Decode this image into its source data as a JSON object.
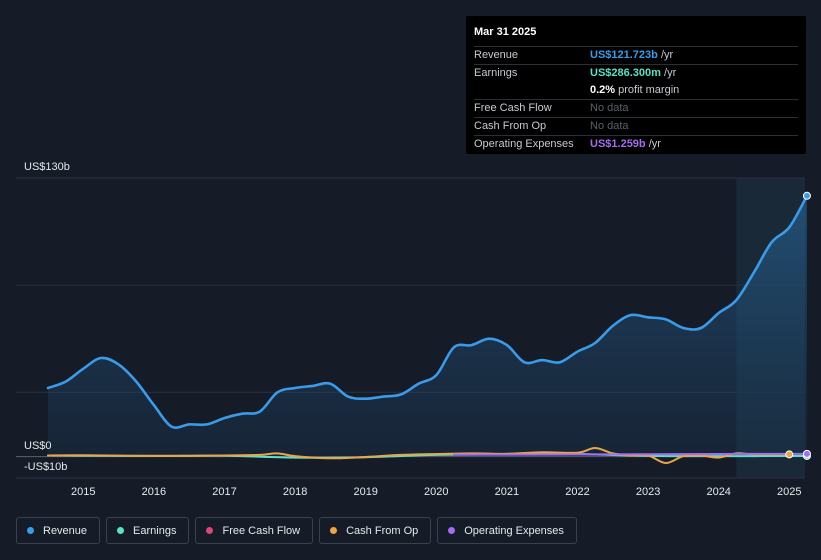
{
  "tooltip": {
    "date": "Mar 31 2025",
    "rows": [
      {
        "label": "Revenue",
        "value": "US$121.723b",
        "unit": " /yr",
        "color": "#3b9be8"
      },
      {
        "label": "Earnings",
        "value": "US$286.300m",
        "unit": " /yr",
        "color": "#5de0c4"
      },
      {
        "label": "",
        "value": "0.2%",
        "unit": " profit margin",
        "color": "#ffffff"
      },
      {
        "label": "Free Cash Flow",
        "value": "No data",
        "unit": "",
        "color": "#5a606b"
      },
      {
        "label": "Cash From Op",
        "value": "No data",
        "unit": "",
        "color": "#5a606b"
      },
      {
        "label": "Operating Expenses",
        "value": "US$1.259b",
        "unit": " /yr",
        "color": "#a46cf0"
      }
    ]
  },
  "legend": [
    {
      "label": "Revenue",
      "color": "#3b9be8"
    },
    {
      "label": "Earnings",
      "color": "#5de0c4"
    },
    {
      "label": "Free Cash Flow",
      "color": "#d9477a"
    },
    {
      "label": "Cash From Op",
      "color": "#e8a54b"
    },
    {
      "label": "Operating Expenses",
      "color": "#a46cf0"
    }
  ],
  "chart_data": {
    "type": "area",
    "y_axis_top_label": "US$130b",
    "y_axis_zero_label": "US$0",
    "y_axis_bottom_label": "-US$10b",
    "ylim": [
      -10,
      130
    ],
    "x_ticks": [
      "2015",
      "2016",
      "2017",
      "2018",
      "2019",
      "2020",
      "2021",
      "2022",
      "2023",
      "2024",
      "2025"
    ],
    "grid": true,
    "series": [
      {
        "name": "Revenue",
        "color": "#3b9be8",
        "x": [
          2014.5,
          2014.75,
          2015.0,
          2015.25,
          2015.5,
          2015.75,
          2016.0,
          2016.25,
          2016.5,
          2016.75,
          2017.0,
          2017.25,
          2017.5,
          2017.75,
          2018.0,
          2018.25,
          2018.5,
          2018.75,
          2019.0,
          2019.25,
          2019.5,
          2019.75,
          2020.0,
          2020.25,
          2020.5,
          2020.75,
          2021.0,
          2021.25,
          2021.5,
          2021.75,
          2022.0,
          2022.25,
          2022.5,
          2022.75,
          2023.0,
          2023.25,
          2023.5,
          2023.75,
          2024.0,
          2024.25,
          2024.5,
          2024.75,
          2025.0,
          2025.25
        ],
        "values": [
          32,
          35,
          41,
          46,
          43,
          35,
          24,
          14,
          15,
          15,
          18,
          20,
          21,
          30,
          32,
          33,
          34,
          28,
          27,
          28,
          29,
          34,
          38,
          51,
          52,
          55,
          52,
          44,
          45,
          44,
          49,
          53,
          61,
          66,
          65,
          64,
          60,
          60,
          67,
          73,
          86,
          100,
          107,
          121.7
        ]
      },
      {
        "name": "Earnings",
        "color": "#5de0c4",
        "x": [
          2014.5,
          2015.0,
          2016.0,
          2017.0,
          2018.0,
          2019.0,
          2020.0,
          2021.0,
          2022.0,
          2023.0,
          2024.0,
          2025.25
        ],
        "values": [
          0.5,
          0.4,
          0.3,
          0.4,
          -0.5,
          -0.3,
          0.8,
          1.0,
          1.2,
          0.3,
          0.2,
          0.29
        ]
      },
      {
        "name": "Cash From Op",
        "color": "#e8a54b",
        "x": [
          2014.5,
          2015.0,
          2016.0,
          2017.0,
          2017.5,
          2017.75,
          2018.0,
          2018.5,
          2019.0,
          2019.5,
          2020.0,
          2020.5,
          2021.0,
          2021.5,
          2022.0,
          2022.25,
          2022.5,
          2022.75,
          2023.0,
          2023.25,
          2023.5,
          2023.75,
          2024.0,
          2024.25,
          2024.5,
          2025.0
        ],
        "values": [
          0.5,
          0.6,
          0.3,
          0.5,
          0.8,
          1.5,
          0.2,
          -0.8,
          -0.2,
          0.8,
          1.2,
          1.5,
          1.3,
          2.0,
          1.8,
          4.0,
          1.5,
          0.5,
          0.5,
          -3.0,
          0.2,
          0.5,
          -0.5,
          1.5,
          1.0,
          1.0
        ]
      },
      {
        "name": "Operating Expenses",
        "color": "#a46cf0",
        "x": [
          2020.25,
          2021.0,
          2022.0,
          2023.0,
          2024.0,
          2025.25
        ],
        "values": [
          0.9,
          0.9,
          1.0,
          1.1,
          1.2,
          1.26
        ]
      }
    ]
  }
}
